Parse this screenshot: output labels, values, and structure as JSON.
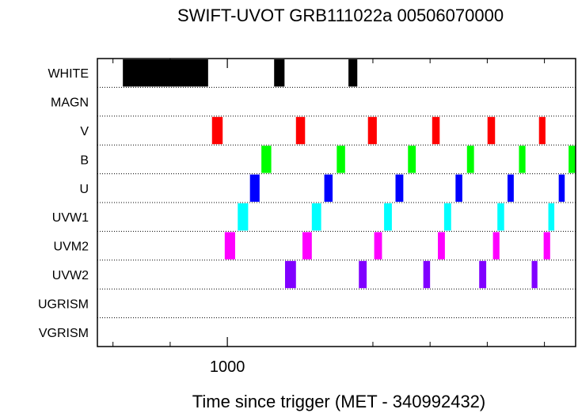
{
  "chart_data": {
    "type": "timeline",
    "title": "SWIFT-UVOT GRB111022a 00506070000",
    "xlabel": "Time since trigger (MET - 340992432)",
    "ylabel": "",
    "xlim": [
      500,
      2340
    ],
    "x_major_ticks": [
      1000
    ],
    "x_minor_ticks": [
      560,
      780,
      1560,
      1780,
      2000,
      2220
    ],
    "filters": [
      "WHITE",
      "MAGN",
      "V",
      "B",
      "U",
      "UVW1",
      "UVM2",
      "UVW2",
      "UGRISM",
      "VGRISM"
    ],
    "colors": {
      "WHITE": "#000000",
      "MAGN": "#000000",
      "V": "#ff0000",
      "B": "#00ff00",
      "U": "#0000ff",
      "UVW1": "#00ffff",
      "UVM2": "#ff00ff",
      "UVW2": "#8000ff",
      "UGRISM": "#000000",
      "VGRISM": "#000000"
    },
    "exposures": {
      "WHITE": [
        [
          598,
          926
        ],
        [
          1180,
          1220
        ],
        [
          1466,
          1500
        ]
      ],
      "MAGN": [],
      "V": [
        [
          941,
          982
        ],
        [
          1264,
          1299
        ],
        [
          1541,
          1575
        ],
        [
          1788,
          1817
        ],
        [
          2001,
          2030
        ],
        [
          2199,
          2224
        ]
      ],
      "B": [
        [
          1131,
          1169
        ],
        [
          1421,
          1453
        ],
        [
          1695,
          1725
        ],
        [
          1922,
          1949
        ],
        [
          2122,
          2147
        ],
        [
          2313,
          2340
        ]
      ],
      "U": [
        [
          1087,
          1124
        ],
        [
          1373,
          1405
        ],
        [
          1647,
          1677
        ],
        [
          1878,
          1904
        ],
        [
          2078,
          2102
        ],
        [
          2275,
          2298
        ]
      ],
      "UVW1": [
        [
          1040,
          1080
        ],
        [
          1325,
          1361
        ],
        [
          1603,
          1633
        ],
        [
          1834,
          1861
        ],
        [
          2039,
          2065
        ],
        [
          2235,
          2258
        ]
      ],
      "UVM2": [
        [
          990,
          1030
        ],
        [
          1289,
          1325
        ],
        [
          1565,
          1595
        ],
        [
          1810,
          1837
        ],
        [
          2022,
          2047
        ],
        [
          2217,
          2242
        ]
      ],
      "UVW2": [
        [
          1222,
          1264
        ],
        [
          1506,
          1536
        ],
        [
          1754,
          1780
        ],
        [
          1969,
          1996
        ],
        [
          2171,
          2193
        ]
      ],
      "UGRISM": [],
      "VGRISM": []
    }
  }
}
